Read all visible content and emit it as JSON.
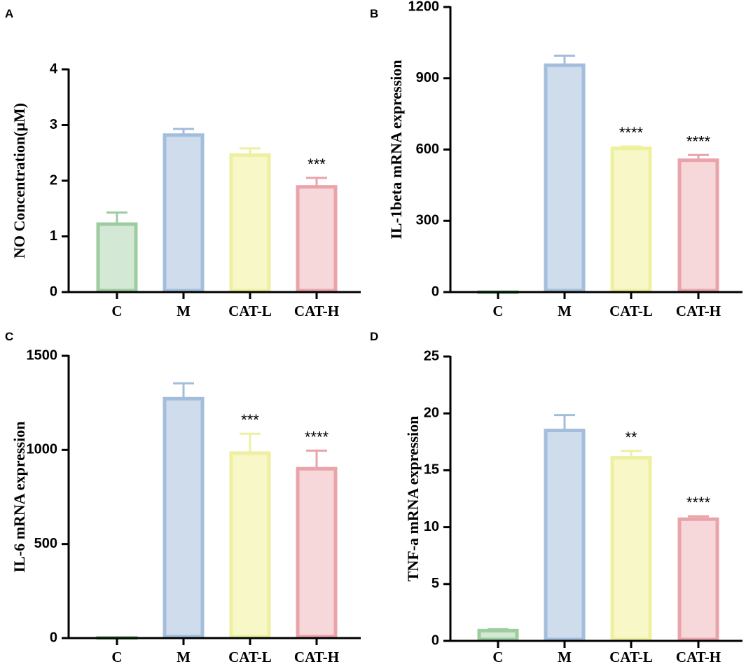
{
  "colors": {
    "C": {
      "fill": "#d4e8d6",
      "stroke": "#9ccd9f"
    },
    "M": {
      "fill": "#cfdcec",
      "stroke": "#a3bedd"
    },
    "CAT-L": {
      "fill": "#f7f7c8",
      "stroke": "#eef0a0"
    },
    "CAT-H": {
      "fill": "#f6d7da",
      "stroke": "#eaa3aa"
    },
    "axis": "#000000"
  },
  "chart_data": [
    {
      "panel": "A",
      "type": "bar",
      "categories": [
        "C",
        "M",
        "CAT-L",
        "CAT-H"
      ],
      "values": [
        1.22,
        2.82,
        2.46,
        1.89
      ],
      "errors": [
        0.21,
        0.11,
        0.12,
        0.16
      ],
      "significance": [
        "",
        "",
        "",
        "***"
      ],
      "ylabel": "NO Concentration(μM)",
      "ylim": [
        0,
        4
      ],
      "yticks": [
        0,
        1,
        2,
        3,
        4
      ],
      "ytick_labels": [
        "0",
        "1",
        "2",
        "3",
        "4"
      ]
    },
    {
      "panel": "B",
      "type": "bar",
      "categories": [
        "C",
        "M",
        "CAT-L",
        "CAT-H"
      ],
      "values": [
        0,
        955,
        605,
        555
      ],
      "errors": [
        0,
        40,
        8,
        22
      ],
      "significance": [
        "",
        "",
        "****",
        "****"
      ],
      "ylabel": "IL-1beta mRNA expression",
      "ylim": [
        0,
        1200
      ],
      "yticks": [
        0,
        300,
        600,
        900,
        1200
      ],
      "ytick_labels": [
        "0",
        "300",
        "600",
        "900",
        "1200"
      ]
    },
    {
      "panel": "C",
      "type": "bar",
      "categories": [
        "C",
        "M",
        "CAT-L",
        "CAT-H"
      ],
      "values": [
        2,
        1272,
        983,
        900
      ],
      "errors": [
        0,
        82,
        103,
        96
      ],
      "significance": [
        "",
        "",
        "***",
        "****"
      ],
      "ylabel": "IL-6 mRNA expression",
      "ylim": [
        0,
        1500
      ],
      "yticks": [
        0,
        500,
        1000,
        1500
      ],
      "ytick_labels": [
        "0",
        "500",
        "1000",
        "1500"
      ]
    },
    {
      "panel": "D",
      "type": "bar",
      "categories": [
        "C",
        "M",
        "CAT-L",
        "CAT-H"
      ],
      "values": [
        0.9,
        18.5,
        16.1,
        10.7
      ],
      "errors": [
        0.12,
        1.35,
        0.6,
        0.25
      ],
      "significance": [
        "",
        "",
        "**",
        "****"
      ],
      "ylabel": "TNF-a mRNA expression",
      "ylim": [
        0,
        25
      ],
      "yticks": [
        0,
        5,
        10,
        15,
        20,
        25
      ],
      "ytick_labels": [
        "0",
        "5",
        "10",
        "15",
        "20",
        "25"
      ]
    }
  ]
}
